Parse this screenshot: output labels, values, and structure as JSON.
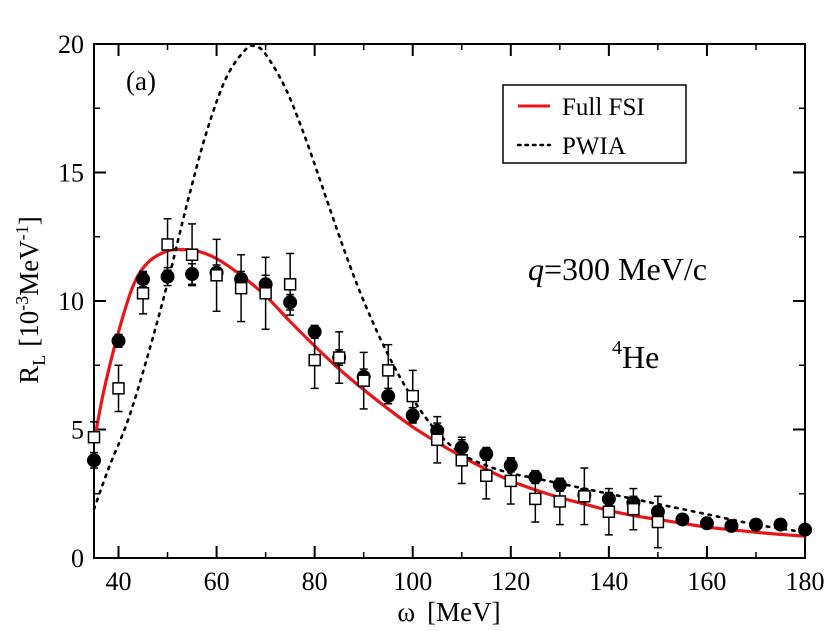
{
  "chart_data": {
    "type": "line",
    "xlabel": {
      "symbol": "ω",
      "unit": "[MeV]"
    },
    "ylabel": {
      "base": "R",
      "sub": "L",
      "unit_open": "[10",
      "exp1": "-3",
      "mid": "MeV",
      "exp2": "-1",
      "unit_close": "]"
    },
    "xlim": [
      35,
      180
    ],
    "ylim": [
      0,
      20
    ],
    "x_ticks": [
      40,
      60,
      80,
      100,
      120,
      140,
      160,
      180
    ],
    "y_ticks": [
      0,
      5,
      10,
      15,
      20
    ],
    "annotations": {
      "panel": "(a)",
      "q_italic": "q",
      "q_rest": "=300 MeV/c",
      "nucleus_mass": "4",
      "nucleus_symbol": "He"
    },
    "legend": {
      "position": "top-right",
      "entries": [
        {
          "label": "Full FSI",
          "style": "solid",
          "color": "#e8161b"
        },
        {
          "label": "PWIA",
          "style": "dotted",
          "color": "#000000"
        }
      ]
    },
    "series": [
      {
        "name": "Full FSI",
        "style": "solid",
        "color": "#e8161b",
        "x": [
          35,
          37,
          40,
          43,
          46,
          50,
          53,
          56,
          60,
          65,
          70,
          75,
          80,
          85,
          90,
          95,
          100,
          105,
          110,
          115,
          120,
          125,
          130,
          135,
          140,
          145,
          150,
          155,
          160,
          165,
          170,
          175,
          180
        ],
        "y": [
          4.5,
          6.5,
          8.8,
          10.6,
          11.5,
          11.95,
          12.0,
          11.95,
          11.65,
          11.0,
          10.2,
          9.2,
          8.25,
          7.35,
          6.55,
          5.8,
          5.1,
          4.5,
          3.95,
          3.45,
          3.0,
          2.65,
          2.35,
          2.1,
          1.85,
          1.65,
          1.5,
          1.35,
          1.2,
          1.1,
          1.0,
          0.92,
          0.85
        ]
      },
      {
        "name": "PWIA",
        "style": "dotted",
        "color": "#000000",
        "x": [
          35,
          38,
          42,
          46,
          50,
          54,
          58,
          62,
          66,
          68,
          70,
          74,
          78,
          82,
          86,
          90,
          95,
          100,
          105,
          110,
          115,
          120,
          125,
          130,
          135,
          140,
          145,
          150,
          160,
          170,
          180
        ],
        "y": [
          1.9,
          3.5,
          5.4,
          7.9,
          10.7,
          13.8,
          16.6,
          18.7,
          19.8,
          19.9,
          19.6,
          18.3,
          16.4,
          14.2,
          12.0,
          10.0,
          7.9,
          6.2,
          4.9,
          4.05,
          3.6,
          3.3,
          3.1,
          2.9,
          2.7,
          2.5,
          2.3,
          2.1,
          1.7,
          1.3,
          1.0
        ]
      },
      {
        "name": "Data (filled circles)",
        "marker": "circle-filled",
        "x": [
          35,
          40,
          45,
          50,
          55,
          60,
          65,
          70,
          75,
          80,
          85,
          90,
          95,
          100,
          105,
          110,
          115,
          120,
          125,
          130,
          135,
          140,
          145,
          150,
          155,
          160,
          165,
          170,
          175,
          180
        ],
        "y": [
          3.8,
          8.45,
          10.85,
          10.95,
          11.05,
          11.1,
          10.85,
          10.65,
          9.95,
          8.8,
          7.8,
          7.05,
          6.3,
          5.55,
          4.95,
          4.3,
          4.05,
          3.6,
          3.15,
          2.85,
          2.45,
          2.3,
          2.15,
          1.8,
          1.5,
          1.35,
          1.25,
          1.3,
          1.3,
          1.1
        ],
        "err": [
          0.3,
          0.25,
          0.3,
          0.35,
          0.4,
          0.3,
          0.3,
          0.35,
          0.3,
          0.25,
          0.3,
          0.3,
          0.3,
          0.3,
          0.3,
          0.3,
          0.25,
          0.25,
          0.25,
          0.25,
          0.25,
          0.25,
          0.25,
          0.2,
          0.2,
          0.2,
          0.2,
          0.2,
          0.2,
          0.2
        ]
      },
      {
        "name": "Data (open squares)",
        "marker": "square-open",
        "x": [
          35,
          40,
          45,
          50,
          55,
          60,
          65,
          70,
          75,
          80,
          85,
          90,
          95,
          100,
          105,
          110,
          115,
          120,
          125,
          130,
          135,
          140,
          145,
          150
        ],
        "y": [
          4.7,
          6.6,
          10.3,
          12.2,
          11.8,
          11.0,
          10.5,
          10.3,
          10.65,
          7.7,
          7.8,
          6.9,
          7.3,
          6.3,
          4.6,
          3.8,
          3.2,
          3.0,
          2.3,
          2.2,
          2.4,
          1.8,
          1.9,
          1.4
        ],
        "err": [
          0.6,
          0.9,
          0.8,
          1.0,
          1.2,
          1.4,
          1.3,
          1.4,
          1.2,
          1.1,
          1.0,
          1.1,
          1.0,
          1.0,
          0.9,
          0.9,
          0.9,
          0.9,
          0.9,
          0.9,
          1.1,
          0.9,
          0.8,
          1.0
        ]
      }
    ]
  }
}
